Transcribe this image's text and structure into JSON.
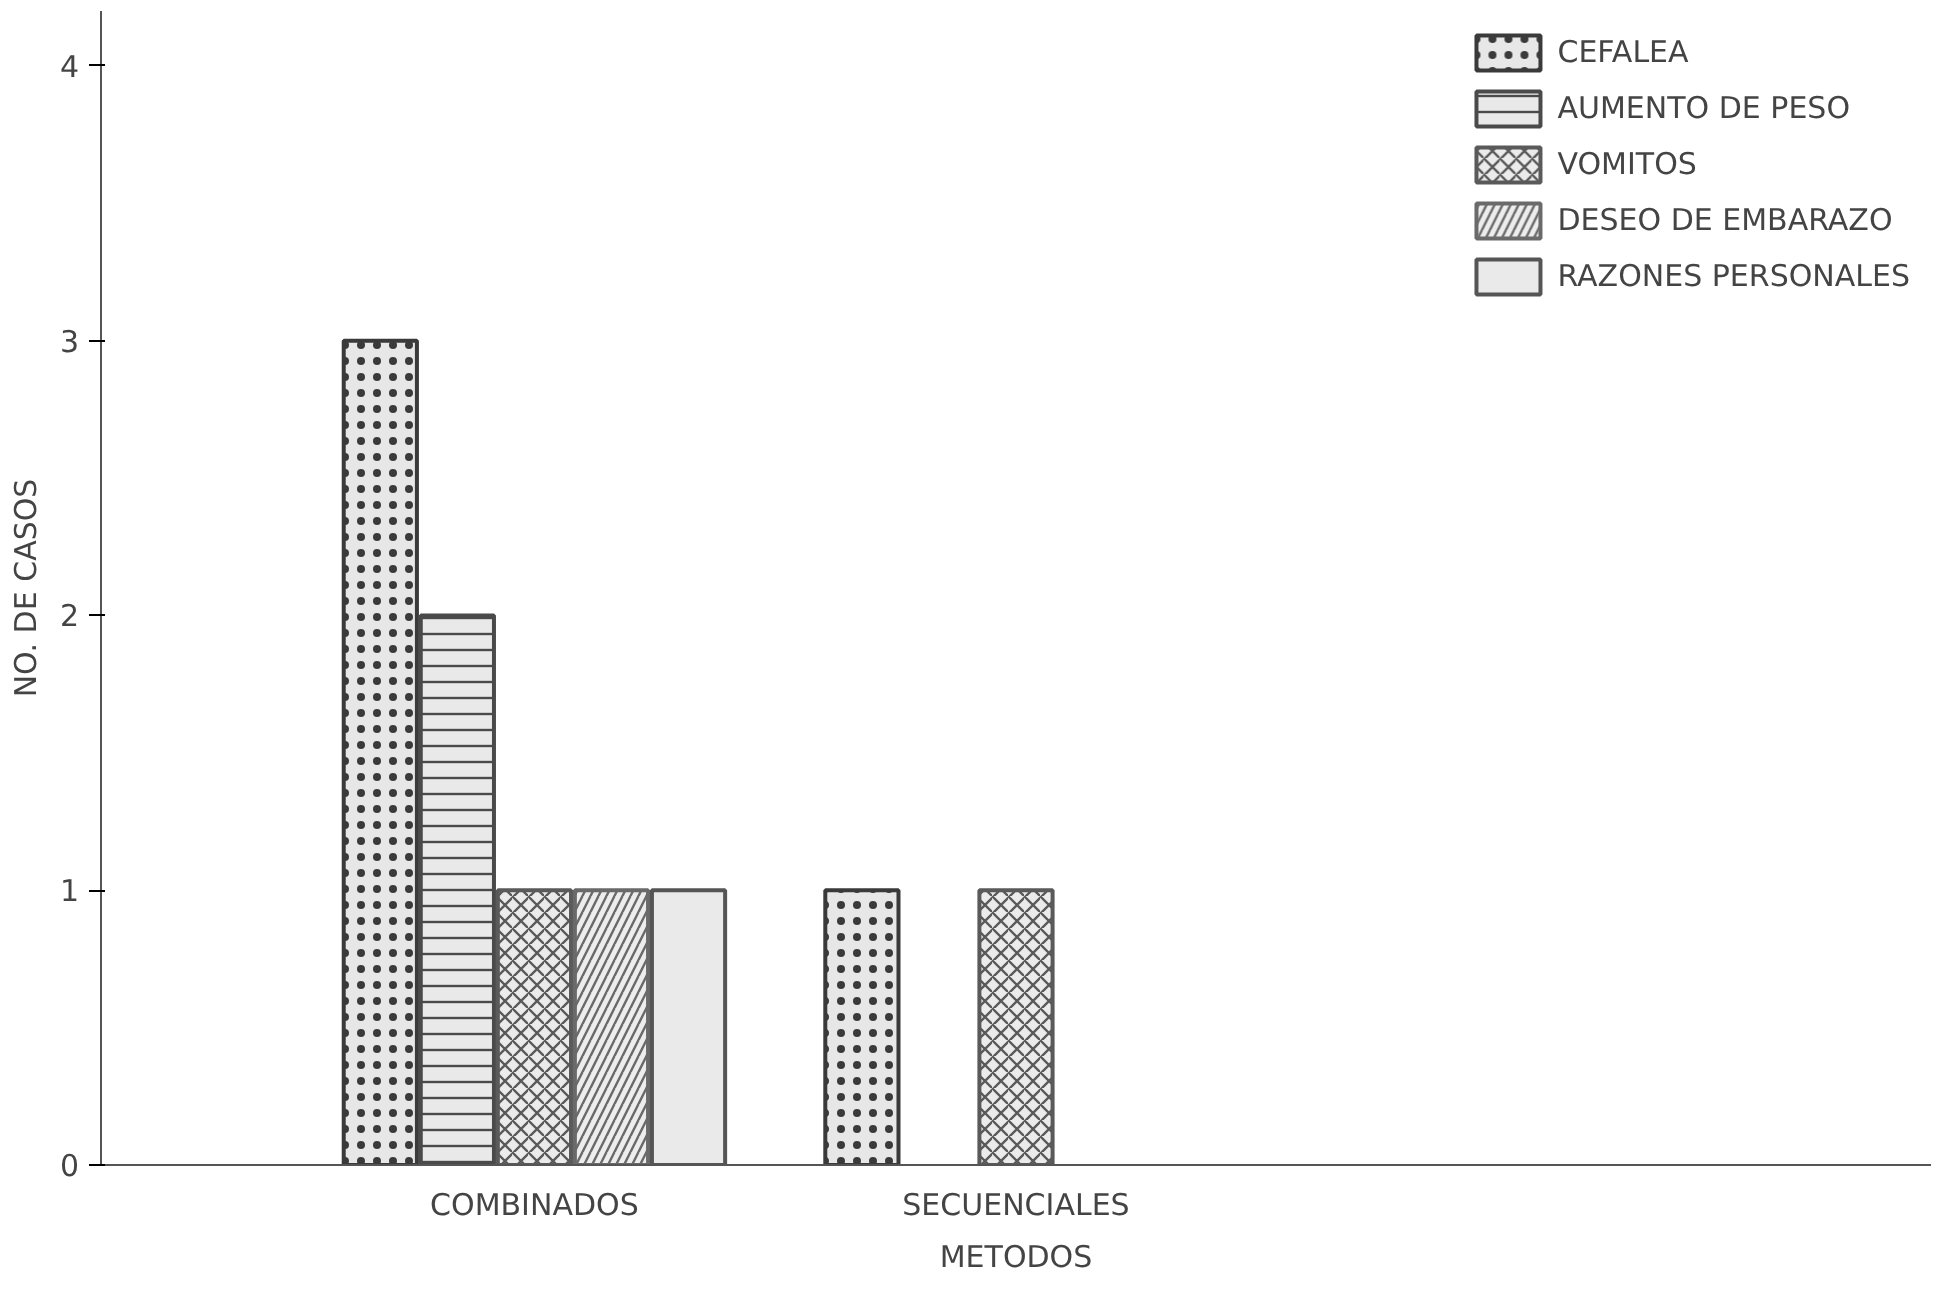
{
  "chart_data": {
    "type": "bar",
    "xlabel": "METODOS",
    "ylabel": "NO. DE CASOS",
    "categories": [
      "COMBINADOS",
      "SECUENCIALES"
    ],
    "series": [
      {
        "name": "CEFALEA",
        "color": "#3a3a3a",
        "values": [
          3,
          1
        ]
      },
      {
        "name": "AUMENTO DE PESO",
        "color": "#4a4a4a",
        "values": [
          2,
          null
        ]
      },
      {
        "name": "VOMITOS",
        "color": "#5a5a5a",
        "values": [
          1,
          1
        ]
      },
      {
        "name": "DESEO DE EMBARAZO",
        "color": "#6a6a6a",
        "values": [
          1,
          null
        ]
      },
      {
        "name": "RAZONES PERSONALES",
        "color": "#555555",
        "values": [
          1,
          null
        ]
      }
    ],
    "ylim": [
      0,
      4.2
    ],
    "yticks": [
      0,
      1,
      2,
      3,
      4
    ],
    "grid": false,
    "legend": "top right"
  }
}
